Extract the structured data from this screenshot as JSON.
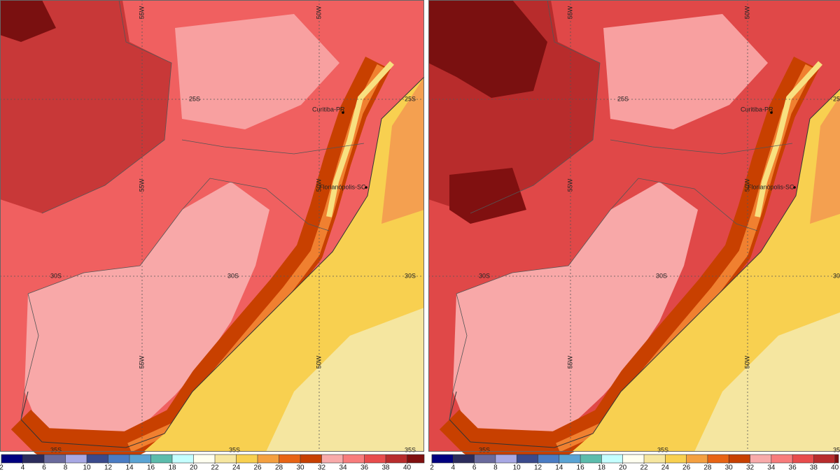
{
  "map": {
    "latitude_labels": [
      "25S",
      "30S",
      "35S"
    ],
    "longitude_labels": [
      "55W",
      "50W"
    ],
    "cities": [
      "Curitiba-PR",
      "Florianópolis-SC"
    ],
    "colorbar": {
      "ticks": [
        2,
        4,
        6,
        8,
        10,
        12,
        14,
        16,
        18,
        20,
        22,
        24,
        26,
        28,
        30,
        32,
        34,
        36,
        38,
        40
      ],
      "colors": [
        "#000080",
        "#2c2c5c",
        "#6a6a9c",
        "#a8a8e4",
        "#3a4a8c",
        "#4a7cc4",
        "#5aa4d4",
        "#5cbcac",
        "#c4ffff",
        "#fffff0",
        "#f6e6a0",
        "#f8d050",
        "#f4a040",
        "#e86414",
        "#c84000",
        "#f8aaaa",
        "#f87c7c",
        "#e84c4c",
        "#b82c2c",
        "#801010",
        "#400000"
      ]
    }
  }
}
